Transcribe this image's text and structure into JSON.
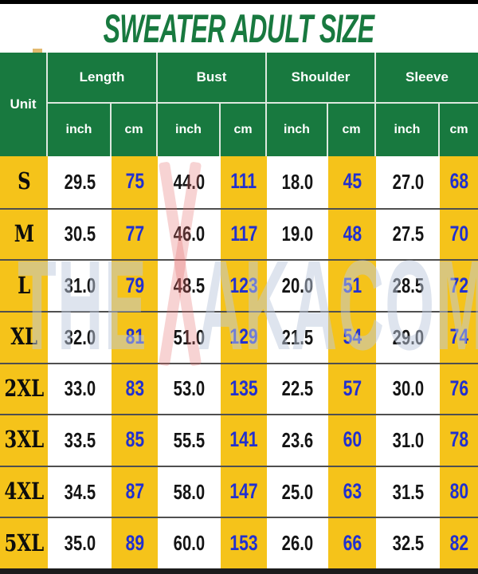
{
  "title": "SWEATER ADULT SIZE",
  "watermark": {
    "left": "THE",
    "right": "AKACOM"
  },
  "colors": {
    "green": "#18793F",
    "yellow": "#F5C31A",
    "blue_text": "#2130D0",
    "row_divider": "#4F4F4F",
    "top_bar": "#000000",
    "bottom_bar": "#1C1C1C"
  },
  "chart_data": {
    "type": "table",
    "title": "SWEATER ADULT SIZE",
    "unit_header": "Unit",
    "measure_groups": [
      "Length",
      "Bust",
      "Shoulder",
      "Sleeve"
    ],
    "sub_headers": [
      "inch",
      "cm"
    ],
    "columns": [
      "Unit",
      "Length inch",
      "Length cm",
      "Bust inch",
      "Bust cm",
      "Shoulder inch",
      "Shoulder cm",
      "Sleeve inch",
      "Sleeve cm"
    ],
    "rows": [
      {
        "size": "S",
        "values": [
          "29.5",
          "75",
          "44.0",
          "111",
          "18.0",
          "45",
          "27.0",
          "68"
        ]
      },
      {
        "size": "M",
        "values": [
          "30.5",
          "77",
          "46.0",
          "117",
          "19.0",
          "48",
          "27.5",
          "70"
        ]
      },
      {
        "size": "L",
        "values": [
          "31.0",
          "79",
          "48.5",
          "123",
          "20.0",
          "51",
          "28.5",
          "72"
        ]
      },
      {
        "size": "XL",
        "values": [
          "32.0",
          "81",
          "51.0",
          "129",
          "21.5",
          "54",
          "29.0",
          "74"
        ]
      },
      {
        "size": "2XL",
        "values": [
          "33.0",
          "83",
          "53.0",
          "135",
          "22.5",
          "57",
          "30.0",
          "76"
        ]
      },
      {
        "size": "3XL",
        "values": [
          "33.5",
          "85",
          "55.5",
          "141",
          "23.6",
          "60",
          "31.0",
          "78"
        ]
      },
      {
        "size": "4XL",
        "values": [
          "34.5",
          "87",
          "58.0",
          "147",
          "25.0",
          "63",
          "31.5",
          "80"
        ]
      },
      {
        "size": "5XL",
        "values": [
          "35.0",
          "89",
          "60.0",
          "153",
          "26.0",
          "66",
          "32.5",
          "82"
        ]
      }
    ]
  }
}
